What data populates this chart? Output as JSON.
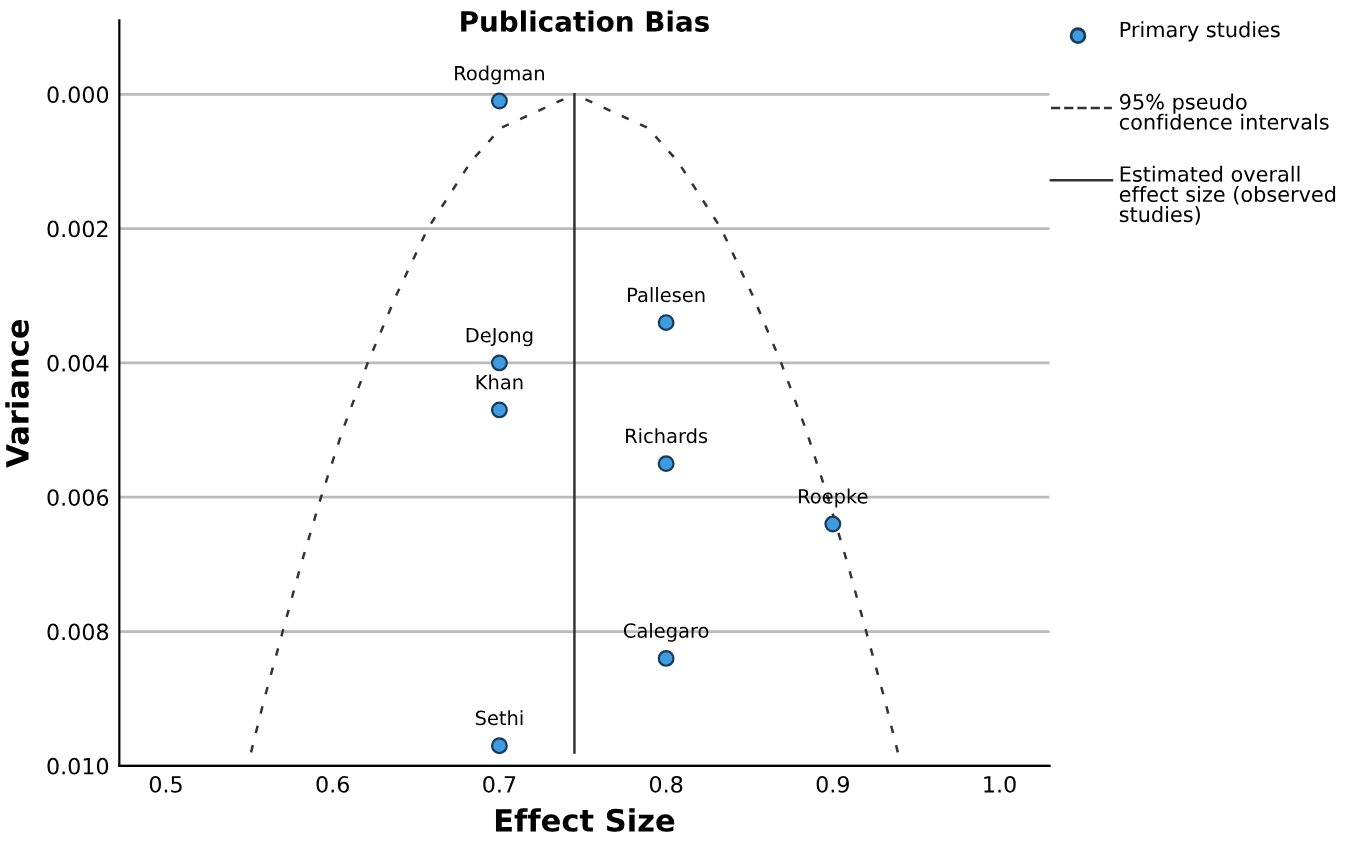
{
  "chart_data": {
    "type": "scatter",
    "title": "Publication Bias",
    "xlabel": "Effect Size",
    "ylabel": "Variance",
    "xlim": [
      0.472,
      1.03
    ],
    "ylim": [
      0.01,
      -0.0011
    ],
    "xticks": [
      {
        "value": 0.5,
        "label": "0.5"
      },
      {
        "value": 0.6,
        "label": "0.6"
      },
      {
        "value": 0.7,
        "label": "0.7"
      },
      {
        "value": 0.8,
        "label": "0.8"
      },
      {
        "value": 0.9,
        "label": "0.9"
      },
      {
        "value": 1.0,
        "label": "1.0"
      }
    ],
    "yticks": [
      {
        "value": 0.0,
        "label": "0.000"
      },
      {
        "value": 0.002,
        "label": "0.002"
      },
      {
        "value": 0.004,
        "label": "0.004"
      },
      {
        "value": 0.006,
        "label": "0.006"
      },
      {
        "value": 0.008,
        "label": "0.008"
      },
      {
        "value": 0.01,
        "label": "0.010"
      }
    ],
    "grid": "y",
    "legend": "top right",
    "series": [
      {
        "name": "Primary studies",
        "type": "scatter",
        "marker": "circle",
        "color": "#3d9be0",
        "x": [
          0.7,
          0.7,
          0.7,
          0.7,
          0.8,
          0.8,
          0.8,
          0.9
        ],
        "values": [
          0.0001,
          0.004,
          0.0047,
          0.0097,
          0.0034,
          0.0055,
          0.0084,
          0.0064
        ]
      },
      {
        "name": "95% pseudo confidence intervals",
        "type": "line",
        "line_style": "dashed",
        "marker": "none",
        "color": "#333333",
        "x": [
          0.551,
          0.559,
          0.57,
          0.581,
          0.593,
          0.606,
          0.621,
          0.638,
          0.657,
          0.683,
          0.701,
          0.745
        ],
        "values": [
          0.0098,
          0.009,
          0.008,
          0.007,
          0.006,
          0.005,
          0.004,
          0.003,
          0.002,
          0.001,
          0.0005,
          0.0
        ]
      },
      {
        "type": "line",
        "line_style": "dashed",
        "marker": "none",
        "color": "#333333",
        "x": [
          0.939,
          0.931,
          0.92,
          0.909,
          0.897,
          0.884,
          0.869,
          0.852,
          0.833,
          0.807,
          0.789,
          0.745
        ],
        "values": [
          0.0098,
          0.009,
          0.008,
          0.007,
          0.006,
          0.005,
          0.004,
          0.003,
          0.002,
          0.001,
          0.0005,
          0.0
        ]
      },
      {
        "name": "Estimated overall effect size (observed studies)",
        "type": "line",
        "line_style": "solid",
        "marker": "none",
        "color": "#333333",
        "x": [
          0.745,
          0.745
        ],
        "values": [
          0.0,
          0.0098
        ]
      }
    ],
    "annotations": [
      {
        "text": "Rodgman",
        "x": 0.7,
        "y": 0.0001
      },
      {
        "text": "DeJong",
        "x": 0.7,
        "y": 0.004
      },
      {
        "text": "Khan",
        "x": 0.7,
        "y": 0.0047
      },
      {
        "text": "Sethi",
        "x": 0.7,
        "y": 0.0097
      },
      {
        "text": "Pallesen",
        "x": 0.8,
        "y": 0.0034
      },
      {
        "text": "Richards",
        "x": 0.8,
        "y": 0.0055
      },
      {
        "text": "Calegaro",
        "x": 0.8,
        "y": 0.0084
      },
      {
        "text": "Roepke",
        "x": 0.9,
        "y": 0.0064
      }
    ]
  }
}
